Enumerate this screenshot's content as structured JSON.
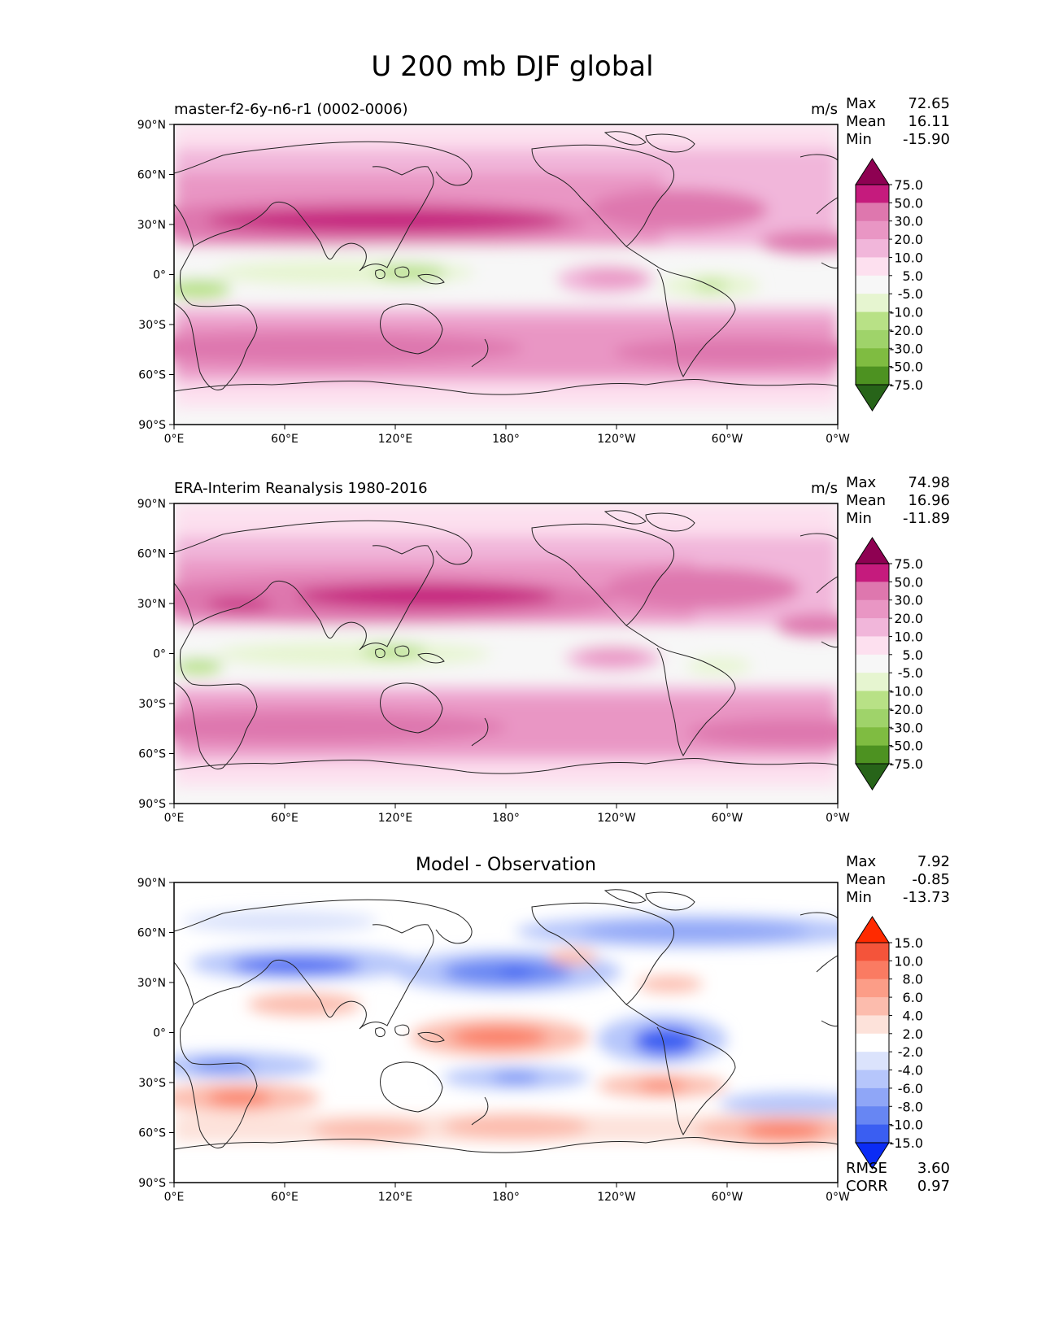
{
  "title": "U 200 mb DJF global",
  "x_ticks": [
    "0°E",
    "60°E",
    "120°E",
    "180°",
    "120°W",
    "60°W",
    "0°W"
  ],
  "y_ticks": [
    "90°N",
    "60°N",
    "30°N",
    "0°",
    "30°S",
    "60°S",
    "90°S"
  ],
  "panels": [
    {
      "left_title": "master-f2-6y-n6-r1 (0002-0006)",
      "center_title": "",
      "units": "m/s",
      "stats": [
        {
          "label": "Max",
          "value": "72.65"
        },
        {
          "label": "Mean",
          "value": "16.11"
        },
        {
          "label": "Min",
          "value": "-15.90"
        }
      ],
      "bottom_stats": [],
      "colorbar": {
        "levels": [
          "75.0",
          "50.0",
          "30.0",
          "20.0",
          "10.0",
          "5.0",
          "-5.0",
          "-10.0",
          "-20.0",
          "-30.0",
          "-50.0",
          "-75.0"
        ],
        "colors": [
          "#8e0152",
          "#c51b7d",
          "#de77ae",
          "#e996c4",
          "#f1b6da",
          "#fde0ef",
          "#f7f7f7",
          "#e6f5d0",
          "#b8e186",
          "#9fd36a",
          "#7fbc41",
          "#4d9221",
          "#276419"
        ]
      }
    },
    {
      "left_title": "ERA-Interim Reanalysis 1980-2016",
      "center_title": "",
      "units": "m/s",
      "stats": [
        {
          "label": "Max",
          "value": "74.98"
        },
        {
          "label": "Mean",
          "value": "16.96"
        },
        {
          "label": "Min",
          "value": "-11.89"
        }
      ],
      "bottom_stats": [],
      "colorbar": {
        "levels": [
          "75.0",
          "50.0",
          "30.0",
          "20.0",
          "10.0",
          "5.0",
          "-5.0",
          "-10.0",
          "-20.0",
          "-30.0",
          "-50.0",
          "-75.0"
        ],
        "colors": [
          "#8e0152",
          "#c51b7d",
          "#de77ae",
          "#e996c4",
          "#f1b6da",
          "#fde0ef",
          "#f7f7f7",
          "#e6f5d0",
          "#b8e186",
          "#9fd36a",
          "#7fbc41",
          "#4d9221",
          "#276419"
        ]
      }
    },
    {
      "left_title": "",
      "center_title": "Model - Observation",
      "units": "",
      "stats": [
        {
          "label": "Max",
          "value": "7.92"
        },
        {
          "label": "Mean",
          "value": "-0.85"
        },
        {
          "label": "Min",
          "value": "-13.73"
        }
      ],
      "bottom_stats": [
        {
          "label": "RMSE",
          "value": "3.60"
        },
        {
          "label": "CORR",
          "value": "0.97"
        }
      ],
      "colorbar": {
        "levels": [
          "15.0",
          "10.0",
          "8.0",
          "6.0",
          "4.0",
          "2.0",
          "-2.0",
          "-4.0",
          "-6.0",
          "-8.0",
          "-10.0",
          "-15.0"
        ],
        "colors": [
          "#ff2a00",
          "#f4543a",
          "#fa7b62",
          "#fc9d87",
          "#fcbcad",
          "#fde2da",
          "#ffffff",
          "#dbe3fc",
          "#b6c6fb",
          "#8fa6f7",
          "#6786f3",
          "#3a5ef2",
          "#0b2cf5"
        ]
      }
    }
  ]
}
